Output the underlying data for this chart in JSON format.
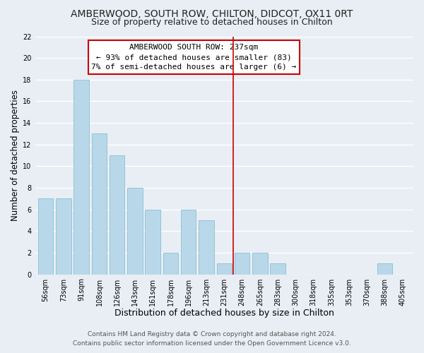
{
  "title": "AMBERWOOD, SOUTH ROW, CHILTON, DIDCOT, OX11 0RT",
  "subtitle": "Size of property relative to detached houses in Chilton",
  "xlabel": "Distribution of detached houses by size in Chilton",
  "ylabel": "Number of detached properties",
  "bar_labels": [
    "56sqm",
    "73sqm",
    "91sqm",
    "108sqm",
    "126sqm",
    "143sqm",
    "161sqm",
    "178sqm",
    "196sqm",
    "213sqm",
    "231sqm",
    "248sqm",
    "265sqm",
    "283sqm",
    "300sqm",
    "318sqm",
    "335sqm",
    "353sqm",
    "370sqm",
    "388sqm",
    "405sqm"
  ],
  "bar_values": [
    7,
    7,
    18,
    13,
    11,
    8,
    6,
    2,
    6,
    5,
    1,
    2,
    2,
    1,
    0,
    0,
    0,
    0,
    0,
    1,
    0
  ],
  "bar_color": "#b8d8ea",
  "bar_edge_color": "#8bbdd4",
  "vline_x": 10.5,
  "vline_color": "#cc0000",
  "ylim": [
    0,
    22
  ],
  "yticks": [
    0,
    2,
    4,
    6,
    8,
    10,
    12,
    14,
    16,
    18,
    20,
    22
  ],
  "annotation_title": "AMBERWOOD SOUTH ROW: 237sqm",
  "annotation_line1": "← 93% of detached houses are smaller (83)",
  "annotation_line2": "7% of semi-detached houses are larger (6) →",
  "footnote1": "Contains HM Land Registry data © Crown copyright and database right 2024.",
  "footnote2": "Contains public sector information licensed under the Open Government Licence v3.0.",
  "bg_color": "#e8eef4",
  "grid_color": "#ffffff",
  "title_fontsize": 10,
  "xlabel_fontsize": 9,
  "ylabel_fontsize": 8.5,
  "tick_fontsize": 7,
  "annotation_fontsize": 8,
  "footnote_fontsize": 6.5
}
